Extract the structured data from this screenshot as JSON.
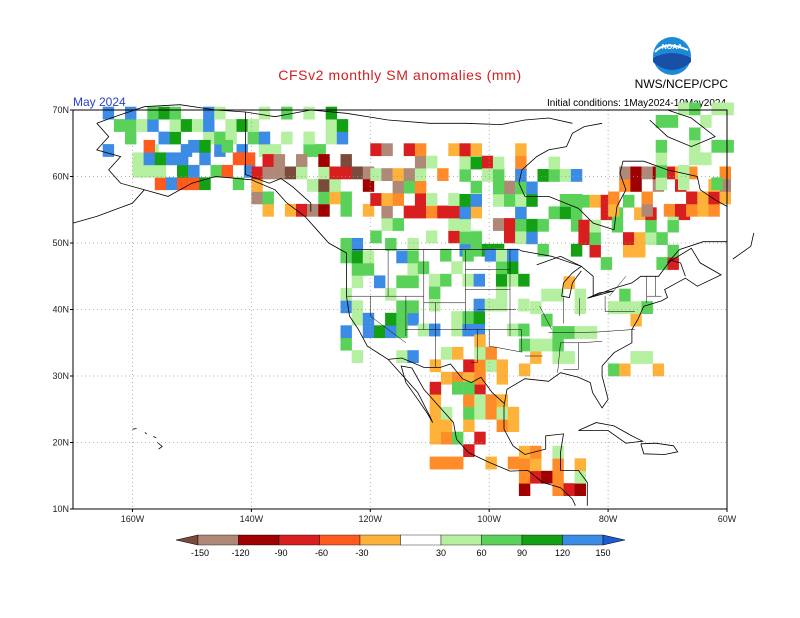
{
  "header": {
    "title": "CFSv2 monthly SM anomalies (mm)",
    "month": "May 2024",
    "agency": "NWS/NCEP/CPC",
    "init_conditions": "Initial conditions: 1May2024-10May2024",
    "logo_text": "NOAA"
  },
  "colors": {
    "title": "#d21e1e",
    "month": "#2a3fd0",
    "frame": "#000000",
    "grid": "#9a9a9a",
    "coast": "#000000"
  },
  "map": {
    "lon_range": [
      -170,
      -60
    ],
    "lat_range": [
      10,
      70
    ],
    "x_ticks": [
      {
        "lon": -160,
        "label": "160W"
      },
      {
        "lon": -140,
        "label": "140W"
      },
      {
        "lon": -120,
        "label": "120W"
      },
      {
        "lon": -100,
        "label": "100W"
      },
      {
        "lon": -80,
        "label": "80W"
      },
      {
        "lon": -60,
        "label": "60W"
      }
    ],
    "y_ticks": [
      {
        "lat": 70,
        "label": "70N"
      },
      {
        "lat": 60,
        "label": "60N"
      },
      {
        "lat": 50,
        "label": "50N"
      },
      {
        "lat": 40,
        "label": "40N"
      },
      {
        "lat": 30,
        "label": "30N"
      },
      {
        "lat": 20,
        "label": "20N"
      },
      {
        "lat": 10,
        "label": "10N"
      }
    ],
    "grid": "dotted"
  },
  "colorbar": {
    "labels": [
      "-150",
      "-120",
      "-90",
      "-60",
      "-30",
      "30",
      "60",
      "90",
      "120",
      "150"
    ],
    "colors": [
      "#7a4a3a",
      "#b08878",
      "#a00000",
      "#d81e1e",
      "#ff5a1e",
      "#ffb23a",
      "#ffffff",
      "#b4f0a0",
      "#5ad25a",
      "#14a014",
      "#3c8ce6",
      "#1e5ad2"
    ]
  },
  "anomaly_regions": [
    {
      "name": "alaska-north",
      "lon": [
        -165,
        -125
      ],
      "lat": [
        63,
        70
      ],
      "classes": [
        "g1",
        "g2",
        "g3",
        "b1",
        "w",
        "w",
        "g1"
      ]
    },
    {
      "name": "alaska-interior",
      "lon": [
        -160,
        -140
      ],
      "lat": [
        58,
        64
      ],
      "classes": [
        "g1",
        "g2",
        "w",
        "b1",
        "r1",
        "g3",
        "w",
        "w"
      ]
    },
    {
      "name": "yukon-bc-north",
      "lon": [
        -140,
        -120
      ],
      "lat": [
        54,
        63
      ],
      "classes": [
        "r2",
        "r3",
        "br1",
        "br2",
        "o1",
        "g1",
        "w",
        "w",
        "g2"
      ]
    },
    {
      "name": "canada-prairies",
      "lon": [
        -120,
        -95
      ],
      "lat": [
        50,
        64
      ],
      "classes": [
        "r2",
        "o1",
        "o2",
        "g1",
        "g2",
        "w",
        "w",
        "br1"
      ]
    },
    {
      "name": "canada-central",
      "lon": [
        -105,
        -85
      ],
      "lat": [
        48,
        62
      ],
      "classes": [
        "g2",
        "g3",
        "g1",
        "w",
        "w",
        "g2",
        "b1"
      ]
    },
    {
      "name": "hudson-east",
      "lon": [
        -85,
        -68
      ],
      "lat": [
        46,
        56
      ],
      "classes": [
        "g1",
        "g2",
        "w",
        "w",
        "r2",
        "o1"
      ]
    },
    {
      "name": "labrador",
      "lon": [
        -80,
        -60
      ],
      "lat": [
        54,
        61
      ],
      "classes": [
        "r2",
        "r3",
        "o1",
        "br1",
        "w",
        "o2"
      ]
    },
    {
      "name": "us-west",
      "lon": [
        -125,
        -112
      ],
      "lat": [
        32,
        49
      ],
      "classes": [
        "g1",
        "g2",
        "g3",
        "w",
        "g1",
        "w",
        "b1"
      ]
    },
    {
      "name": "us-plains",
      "lon": [
        -112,
        -95
      ],
      "lat": [
        36,
        49
      ],
      "classes": [
        "g1",
        "g2",
        "g3",
        "b1",
        "w",
        "w",
        "g1"
      ]
    },
    {
      "name": "us-southwest",
      "lon": [
        -110,
        -98
      ],
      "lat": [
        25,
        36
      ],
      "classes": [
        "o1",
        "o2",
        "r2",
        "g1",
        "w",
        "o1",
        "w"
      ]
    },
    {
      "name": "us-east",
      "lon": [
        -95,
        -72
      ],
      "lat": [
        30,
        45
      ],
      "classes": [
        "g1",
        "g2",
        "w",
        "w",
        "w",
        "g1",
        "o1"
      ]
    },
    {
      "name": "mexico",
      "lon": [
        -110,
        -95
      ],
      "lat": [
        16,
        28
      ],
      "classes": [
        "o1",
        "o2",
        "g1",
        "w",
        "g2",
        "r2",
        "o1"
      ]
    },
    {
      "name": "central-america",
      "lon": [
        -95,
        -85
      ],
      "lat": [
        12,
        18
      ],
      "classes": [
        "o1",
        "r2",
        "r3",
        "o2",
        "g1",
        "w"
      ]
    },
    {
      "name": "greenland-south",
      "lon": [
        -72,
        -60
      ],
      "lat": [
        58,
        70
      ],
      "classes": [
        "g1",
        "w",
        "w",
        "g2"
      ]
    }
  ]
}
